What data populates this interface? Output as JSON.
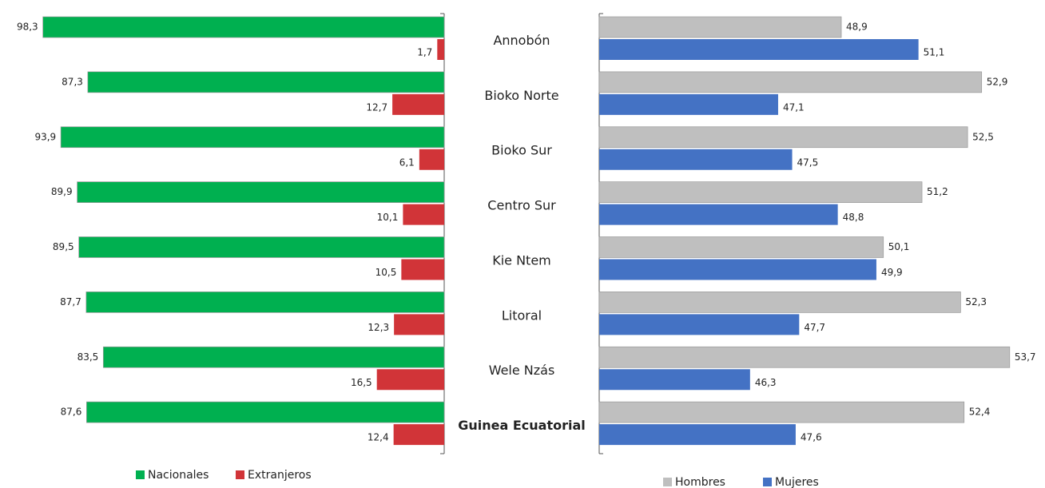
{
  "chart_data": [
    {
      "type": "bar",
      "orientation": "horizontal",
      "reversed": true,
      "categories": [
        "Annobón",
        "Bioko Norte",
        "Bioko Sur",
        "Centro Sur",
        "Kie Ntem",
        "Litoral",
        "Wele Nzás",
        "Guinea Ecuatorial"
      ],
      "xlim": [
        0,
        100
      ],
      "series": [
        {
          "name": "Nacionales",
          "color": "#00b050",
          "values": [
            98.3,
            87.3,
            93.9,
            89.9,
            89.5,
            87.7,
            83.5,
            87.6
          ],
          "value_labels": [
            "98,3",
            "87,3",
            "93,9",
            "89,9",
            "89,5",
            "87,7",
            "83,5",
            "87,6"
          ]
        },
        {
          "name": "Extranjeros",
          "color": "#d13438",
          "values": [
            1.7,
            12.7,
            6.1,
            10.1,
            10.5,
            12.3,
            16.5,
            12.4
          ],
          "value_labels": [
            "1,7",
            "12,7",
            "6,1",
            "10,1",
            "10,5",
            "12,3",
            "16,5",
            "12,4"
          ]
        }
      ]
    },
    {
      "type": "bar",
      "orientation": "horizontal",
      "xlim": [
        42,
        54
      ],
      "series": [
        {
          "name": "Hombres",
          "color": "#bfbfbf",
          "values": [
            48.9,
            52.9,
            52.5,
            51.2,
            50.1,
            52.3,
            53.7,
            52.4
          ],
          "value_labels": [
            "48,9",
            "52,9",
            "52,5",
            "51,2",
            "50,1",
            "52,3",
            "53,7",
            "52,4"
          ]
        },
        {
          "name": "Mujeres",
          "color": "#4472c4",
          "values": [
            51.1,
            47.1,
            47.5,
            48.8,
            49.9,
            47.7,
            46.3,
            47.6
          ],
          "value_labels": [
            "51,1",
            "47,1",
            "47,5",
            "48,8",
            "49,9",
            "47,7",
            "46,3",
            "47,6"
          ]
        }
      ]
    }
  ]
}
